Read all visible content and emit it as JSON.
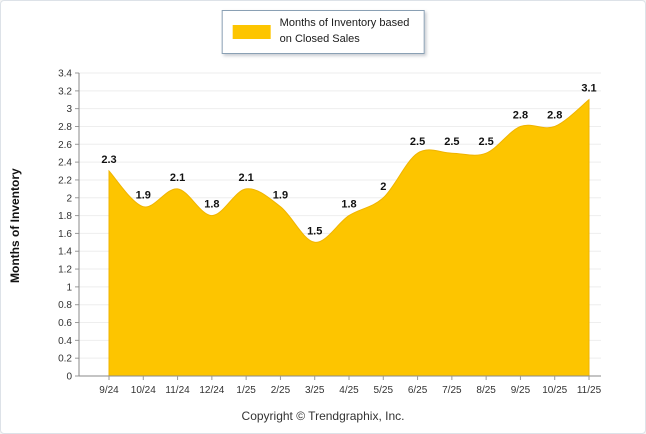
{
  "chart_data": {
    "type": "area",
    "categories": [
      "9/24",
      "10/24",
      "11/24",
      "12/24",
      "1/25",
      "2/25",
      "3/25",
      "4/25",
      "5/25",
      "6/25",
      "7/25",
      "8/25",
      "9/25",
      "10/25",
      "11/25"
    ],
    "values": [
      2.3,
      1.9,
      2.1,
      1.8,
      2.1,
      1.9,
      1.5,
      1.8,
      2,
      2.5,
      2.5,
      2.5,
      2.8,
      2.8,
      3.1
    ],
    "point_labels": [
      "2.3",
      "1.9",
      "2.1",
      "1.8",
      "2.1",
      "1.9",
      "1.5",
      "1.8",
      "2",
      "2.5",
      "2.5",
      "2.5",
      "2.8",
      "2.8",
      "3.1"
    ],
    "title": "",
    "xlabel": "",
    "ylabel": "Months of Inventory",
    "ylim": [
      0,
      3.4
    ],
    "ytick_step": 0.2,
    "grid": true,
    "legend_position": "top-center",
    "series_name": "Months of Inventory based on Closed Sales",
    "fill_color": "#FDC500",
    "stroke_color": "#F0B400"
  },
  "legend": {
    "line1": "Months of Inventory based",
    "line2": "on Closed Sales"
  },
  "footer": {
    "copyright": "Copyright © Trendgraphix, Inc."
  }
}
